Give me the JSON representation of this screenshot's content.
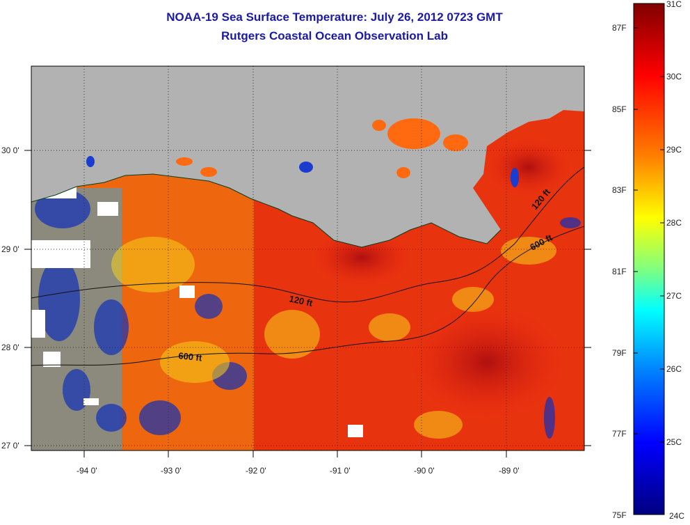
{
  "header": {
    "title_line1": "NOAA-19 Sea Surface Temperature:  July 26, 2012 0723 GMT",
    "title_line2": "Rutgers Coastal Ocean Observation Lab"
  },
  "map": {
    "longitude_labels": [
      "-94 0'",
      "-93 0'",
      "-92 0'",
      "-91 0'",
      "-90 0'",
      "-89 0'"
    ],
    "latitude_labels": [
      "30 0'",
      "29 0'",
      "28 0'",
      "27 0'"
    ],
    "contour_labels": [
      "120 ft",
      "120 ft",
      "600 ft",
      "600 ft"
    ],
    "land_color": "#b2b2b2",
    "no_data_color": "#ffffff"
  },
  "colorbar": {
    "celsius_labels": [
      "31C",
      "30C",
      "29C",
      "28C",
      "27C",
      "26C",
      "25C",
      "24C"
    ],
    "fahrenheit_labels": [
      "87F",
      "85F",
      "83F",
      "81F",
      "79F",
      "77F",
      "75F"
    ],
    "colors": [
      "#800000",
      "#ff0000",
      "#ff8000",
      "#ffff00",
      "#80ff80",
      "#00ffff",
      "#0080ff",
      "#0000ff",
      "#000080"
    ]
  }
}
